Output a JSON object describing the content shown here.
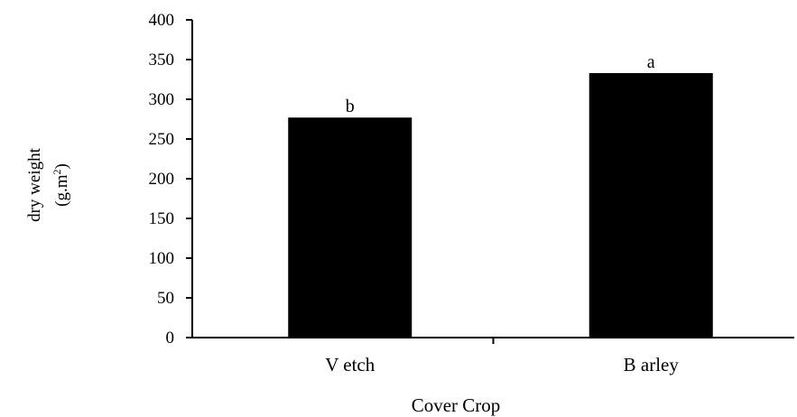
{
  "chart_data": {
    "type": "bar",
    "categories": [
      "V etch",
      "B arley"
    ],
    "values": [
      277,
      333
    ],
    "significance_letters": [
      "b",
      "a"
    ],
    "title": "",
    "xlabel": "Cover Crop",
    "ylabel_line1": "dry weight",
    "ylabel_line2_prefix": "(g.m",
    "ylabel_line2_sup": "2",
    "ylabel_line2_suffix": ")",
    "ylim": [
      0,
      400
    ],
    "yticks": [
      0,
      50,
      100,
      150,
      200,
      250,
      300,
      350,
      400
    ],
    "grid": false,
    "legend": "none",
    "bar_color": "#000000",
    "axis_color": "#000000"
  }
}
